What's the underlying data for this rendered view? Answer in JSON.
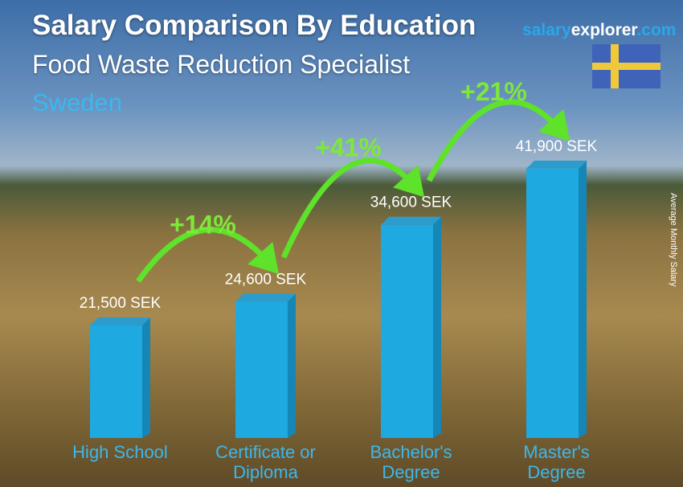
{
  "header": {
    "title": "Salary Comparison By Education",
    "job": "Food Waste Reduction Specialist",
    "country": "Sweden",
    "brand_part1": "salary",
    "brand_part2": "explorer",
    "brand_part3": ".com",
    "flag": "sweden-flag"
  },
  "chart_data": {
    "type": "bar",
    "ylabel": "Average Monthly Salary",
    "categories": [
      "High School",
      "Certificate or Diploma",
      "Bachelor's Degree",
      "Master's Degree"
    ],
    "category_lines": [
      [
        "High School"
      ],
      [
        "Certificate or",
        "Diploma"
      ],
      [
        "Bachelor's",
        "Degree"
      ],
      [
        "Master's",
        "Degree"
      ]
    ],
    "values": [
      21500,
      24600,
      34600,
      41900
    ],
    "value_labels": [
      "21,500 SEK",
      "24,600 SEK",
      "34,600 SEK",
      "41,900 SEK"
    ],
    "changes": [
      "+14%",
      "+41%",
      "+21%"
    ],
    "colors": {
      "bar": "#1ea9e1",
      "arrow": "#5ee22a",
      "category": "#3bb8ee"
    }
  }
}
